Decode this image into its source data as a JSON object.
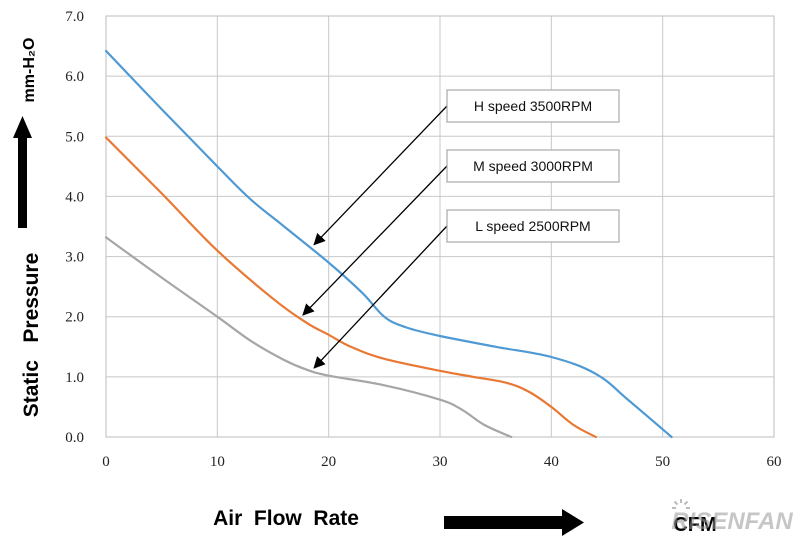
{
  "chart_data": {
    "type": "line",
    "xlabel": "Air  Flow  Rate",
    "xunit": "CFM",
    "ylabel": "Static   Pressure",
    "yunit": "mm-H₂O",
    "xlim": [
      0,
      60
    ],
    "ylim": [
      0,
      7
    ],
    "xticks": [
      "0",
      "10",
      "20",
      "30",
      "40",
      "50",
      "60"
    ],
    "yticks": [
      "0.0",
      "1.0",
      "2.0",
      "3.0",
      "4.0",
      "5.0",
      "6.0",
      "7.0"
    ],
    "grid": true,
    "legend": "top-right",
    "series": [
      {
        "name": "H  speed  3500RPM",
        "color": "#4f9ad4",
        "x": [
          0,
          5,
          10,
          13,
          16,
          20,
          23,
          25,
          27,
          30,
          35,
          40,
          44,
          47,
          50.8
        ],
        "y": [
          6.42,
          5.45,
          4.5,
          3.95,
          3.5,
          2.9,
          2.4,
          2.0,
          1.82,
          1.68,
          1.5,
          1.33,
          1.05,
          0.6,
          0.0
        ]
      },
      {
        "name": "M  speed  3000RPM",
        "color": "#e87833",
        "x": [
          0,
          5,
          10,
          15,
          18,
          20,
          22,
          25,
          30,
          33,
          36,
          38,
          40,
          42,
          44
        ],
        "y": [
          4.98,
          4.05,
          3.1,
          2.3,
          1.9,
          1.7,
          1.5,
          1.3,
          1.1,
          1.0,
          0.9,
          0.75,
          0.5,
          0.2,
          0.0
        ]
      },
      {
        "name": "L  speed  2500RPM",
        "color": "#a6a6a6",
        "x": [
          0,
          5,
          10,
          13,
          16,
          18,
          20,
          25,
          30,
          32,
          34,
          36.4
        ],
        "y": [
          3.32,
          2.65,
          2.0,
          1.6,
          1.28,
          1.12,
          1.02,
          0.86,
          0.62,
          0.45,
          0.2,
          0.0
        ]
      }
    ],
    "annotations": [
      {
        "series": "H  speed  3500RPM",
        "point_x": 18.7,
        "point_y": 3.2
      },
      {
        "series": "M  speed  3000RPM",
        "point_x": 17.7,
        "point_y": 2.03
      },
      {
        "series": "L  speed  2500RPM",
        "point_x": 18.7,
        "point_y": 1.15
      }
    ]
  },
  "logo": {
    "text": "RISENFAN",
    "color": "#999999"
  }
}
